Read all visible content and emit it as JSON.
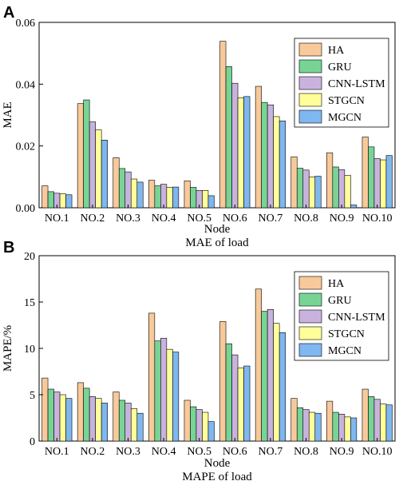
{
  "chart_data": [
    {
      "type": "bar",
      "panel": "A",
      "categories": [
        "NO.1",
        "NO.2",
        "NO.3",
        "NO.4",
        "NO.5",
        "NO.6",
        "NO.7",
        "NO.8",
        "NO.9",
        "NO.10"
      ],
      "series": [
        {
          "name": "HA",
          "color": "#F8C99A",
          "values": [
            0.0071,
            0.0337,
            0.0162,
            0.0089,
            0.0087,
            0.0539,
            0.0393,
            0.0165,
            0.0178,
            0.0229
          ]
        },
        {
          "name": "GRU",
          "color": "#77D495",
          "values": [
            0.0052,
            0.0349,
            0.0127,
            0.0071,
            0.0066,
            0.0457,
            0.0341,
            0.0128,
            0.0132,
            0.0197
          ]
        },
        {
          "name": "CNN-LSTM",
          "color": "#C9B3DE",
          "values": [
            0.0047,
            0.0278,
            0.0116,
            0.0076,
            0.0056,
            0.0403,
            0.0333,
            0.0122,
            0.0123,
            0.0159
          ]
        },
        {
          "name": "STGCN",
          "color": "#FFFF99",
          "values": [
            0.0045,
            0.0252,
            0.0093,
            0.0066,
            0.0056,
            0.0356,
            0.0295,
            0.01,
            0.0105,
            0.0155
          ]
        },
        {
          "name": "MGCN",
          "color": "#7FB7F0",
          "values": [
            0.0042,
            0.0219,
            0.0083,
            0.0067,
            0.0039,
            0.036,
            0.0281,
            0.0102,
            0.0009,
            0.0169
          ]
        }
      ],
      "xlabel": "Node",
      "ylabel": "MAE",
      "caption": "MAE of load",
      "ylim": [
        0,
        0.06
      ],
      "yticks": [
        0.0,
        0.02,
        0.04,
        0.06
      ],
      "ytick_labels": [
        "0.00",
        "0.02",
        "0.04",
        "0.06"
      ],
      "legend": "top-right"
    },
    {
      "type": "bar",
      "panel": "B",
      "categories": [
        "NO.1",
        "NO.2",
        "NO.3",
        "NO.4",
        "NO.5",
        "NO.6",
        "NO.7",
        "NO.8",
        "NO.9",
        "NO.10"
      ],
      "series": [
        {
          "name": "HA",
          "color": "#F8C99A",
          "values": [
            6.8,
            6.3,
            5.3,
            13.8,
            4.4,
            12.9,
            16.4,
            4.6,
            4.3,
            5.6
          ]
        },
        {
          "name": "GRU",
          "color": "#77D495",
          "values": [
            5.6,
            5.7,
            4.4,
            10.8,
            3.7,
            10.5,
            14.0,
            3.6,
            3.1,
            4.8
          ]
        },
        {
          "name": "CNN-LSTM",
          "color": "#C9B3DE",
          "values": [
            5.3,
            4.8,
            4.1,
            11.1,
            3.4,
            9.3,
            14.2,
            3.4,
            2.9,
            4.5
          ]
        },
        {
          "name": "STGCN",
          "color": "#FFFF99",
          "values": [
            5.0,
            4.6,
            3.5,
            9.9,
            3.1,
            7.9,
            12.7,
            3.1,
            2.6,
            4.0
          ]
        },
        {
          "name": "MGCN",
          "color": "#7FB7F0",
          "values": [
            4.6,
            4.1,
            3.0,
            9.6,
            2.1,
            8.1,
            11.7,
            3.0,
            2.5,
            3.9
          ]
        }
      ],
      "xlabel": "Node",
      "ylabel": "MAPE/%",
      "caption": "MAPE of load",
      "ylim": [
        0,
        20
      ],
      "yticks": [
        0,
        5,
        10,
        15,
        20
      ],
      "ytick_labels": [
        "0",
        "5",
        "10",
        "15",
        "20"
      ],
      "legend": "top-right"
    }
  ]
}
